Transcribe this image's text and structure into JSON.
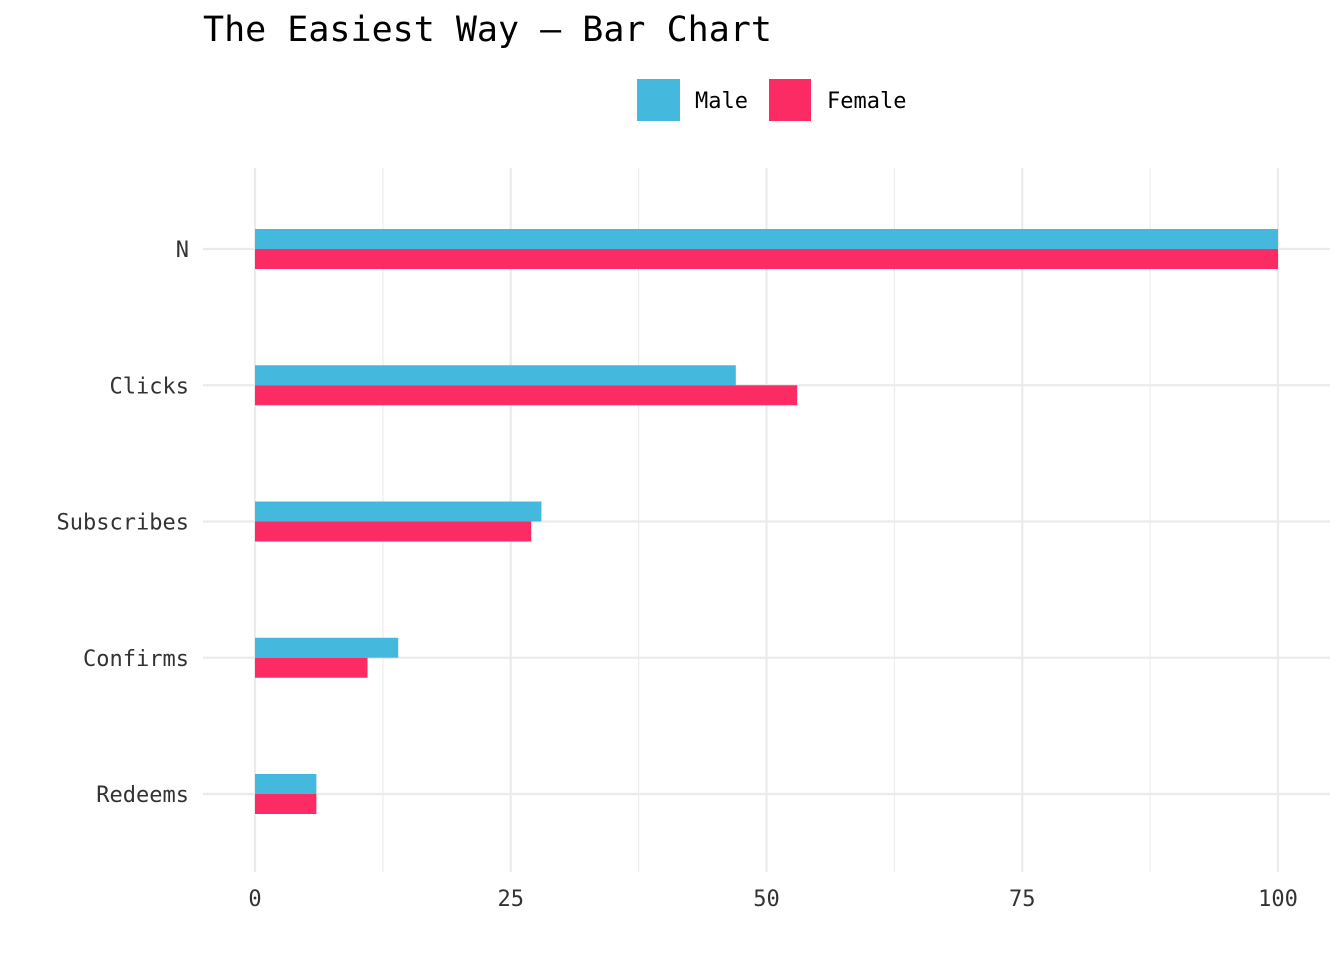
{
  "chart_data": {
    "type": "bar",
    "orientation": "horizontal",
    "title": "The Easiest Way – Bar Chart",
    "xlabel": "",
    "ylabel": "",
    "categories": [
      "N",
      "Clicks",
      "Subscribes",
      "Confirms",
      "Redeems"
    ],
    "series": [
      {
        "name": "Male",
        "color": "#45B8DE",
        "values": [
          100,
          47,
          28,
          14,
          6
        ]
      },
      {
        "name": "Female",
        "color": "#FC2B64",
        "values": [
          100,
          53,
          27,
          11,
          6
        ]
      }
    ],
    "xlim": [
      0,
      100
    ],
    "xticks": [
      "0",
      "25",
      "50",
      "75",
      "100"
    ],
    "legend_position": "top",
    "grid": true
  }
}
